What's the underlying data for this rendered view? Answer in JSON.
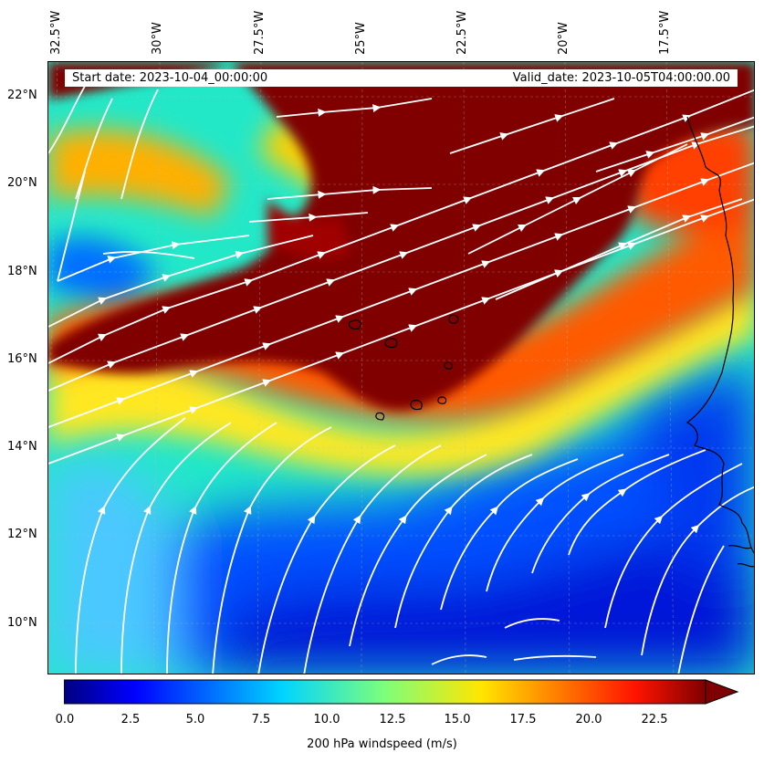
{
  "header": {
    "start_date": "Start date: 2023-10-04_00:00:00",
    "valid_date": "Valid_date: 2023-10-05T04:00:00.00"
  },
  "map": {
    "lon_labels": [
      "32.5°W",
      "30°W",
      "27.5°W",
      "25°W",
      "22.5°W",
      "20°W",
      "17.5°W"
    ],
    "lat_labels": [
      "22°N",
      "20°N",
      "18°N",
      "16°N",
      "14°N",
      "12°N",
      "10°N"
    ],
    "streamline_color": "#ffffff",
    "coastline_color": "#000000",
    "field_colors": {
      "dark_red": "#800000",
      "red": "#d40000",
      "orange": "#ff8c00",
      "yellow": "#ffe000",
      "cyan": "#3ff5e0",
      "light_blue": "#00a0ff",
      "blue": "#0030ff",
      "deep_blue": "#0010c8"
    }
  },
  "colorbar": {
    "ticks": [
      "0.0",
      "2.5",
      "5.0",
      "7.5",
      "10.0",
      "12.5",
      "15.0",
      "17.5",
      "20.0",
      "22.5"
    ],
    "label": "200 hPa windspeed (m/s)",
    "min": 0,
    "max": 25,
    "extend": "max",
    "colormap": "jet"
  }
}
